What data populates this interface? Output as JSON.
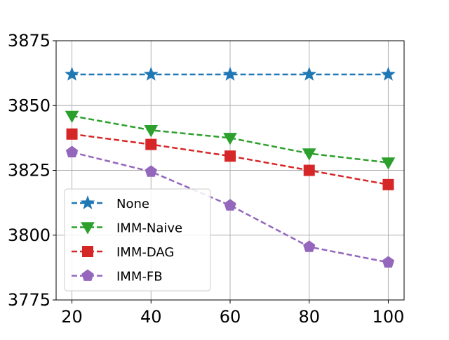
{
  "chart_data": {
    "type": "line",
    "title": "",
    "xlabel": "",
    "ylabel": "",
    "x": [
      20,
      40,
      60,
      80,
      100
    ],
    "x_ticks": [
      20,
      40,
      60,
      80,
      100
    ],
    "x_tick_labels": [
      "20",
      "40",
      "60",
      "80",
      "100"
    ],
    "xlim": [
      16,
      104
    ],
    "ylim": [
      3775,
      3875
    ],
    "y_ticks": [
      3775,
      3800,
      3825,
      3850,
      3875
    ],
    "y_tick_labels": [
      "3775",
      "3800",
      "3825",
      "3850",
      "3875"
    ],
    "grid": true,
    "legend_position": "lower-left",
    "series": [
      {
        "name": "None",
        "marker": "star",
        "color": "#1f77b4",
        "values": [
          3862,
          3862,
          3862,
          3862,
          3862
        ]
      },
      {
        "name": "IMM-Naive",
        "marker": "triangle-down",
        "color": "#2ca02c",
        "values": [
          3846,
          3840.5,
          3837.5,
          3831.5,
          3828
        ]
      },
      {
        "name": "IMM-DAG",
        "marker": "square",
        "color": "#d62728",
        "values": [
          3839,
          3835,
          3830.5,
          3825,
          3819.5
        ]
      },
      {
        "name": "IMM-FB",
        "marker": "pentagon",
        "color": "#9467bd",
        "values": [
          3832,
          3824.5,
          3811.5,
          3795.5,
          3789.5
        ]
      }
    ]
  }
}
